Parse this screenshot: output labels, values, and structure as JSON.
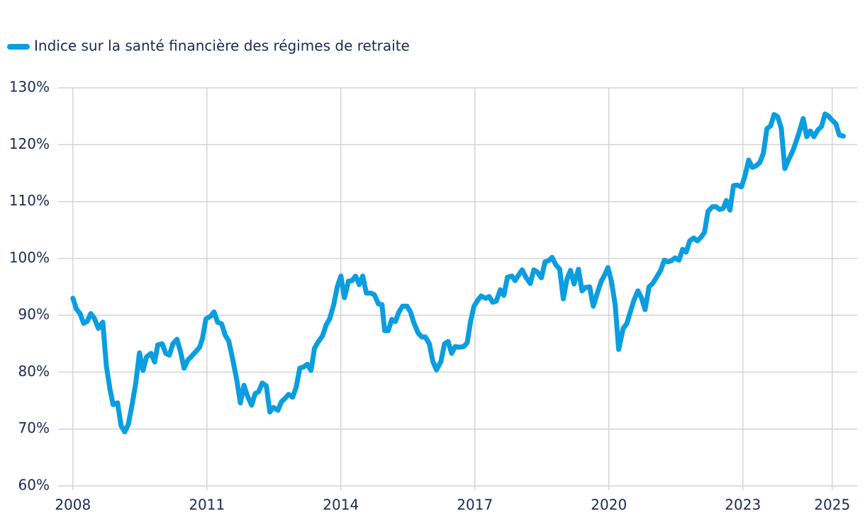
{
  "chart_data": {
    "type": "line",
    "x": [
      2008.0,
      2008.08,
      2008.16,
      2008.24,
      2008.32,
      2008.4,
      2008.48,
      2008.57,
      2008.67,
      2008.75,
      2008.83,
      2008.9,
      2009.0,
      2009.08,
      2009.16,
      2009.24,
      2009.33,
      2009.41,
      2009.49,
      2009.57,
      2009.65,
      2009.75,
      2009.83,
      2009.9,
      2010.0,
      2010.08,
      2010.16,
      2010.24,
      2010.33,
      2010.41,
      2010.49,
      2010.57,
      2010.67,
      2010.75,
      2010.84,
      2010.9,
      2010.98,
      2011.08,
      2011.16,
      2011.24,
      2011.33,
      2011.41,
      2011.49,
      2011.57,
      2011.67,
      2011.75,
      2011.83,
      2011.9,
      2012.0,
      2012.08,
      2012.16,
      2012.24,
      2012.33,
      2012.41,
      2012.49,
      2012.59,
      2012.67,
      2012.75,
      2012.83,
      2012.92,
      2013.0,
      2013.08,
      2013.16,
      2013.25,
      2013.33,
      2013.41,
      2013.49,
      2013.59,
      2013.67,
      2013.75,
      2013.84,
      2013.92,
      2014.0,
      2014.08,
      2014.17,
      2014.25,
      2014.33,
      2014.41,
      2014.49,
      2014.57,
      2014.67,
      2014.75,
      2014.84,
      2014.92,
      2014.98,
      2015.06,
      2015.14,
      2015.22,
      2015.3,
      2015.38,
      2015.48,
      2015.56,
      2015.63,
      2015.73,
      2015.81,
      2015.89,
      2015.98,
      2016.06,
      2016.14,
      2016.24,
      2016.32,
      2016.4,
      2016.48,
      2016.56,
      2016.65,
      2016.75,
      2016.83,
      2016.9,
      2016.98,
      2017.06,
      2017.14,
      2017.24,
      2017.32,
      2017.4,
      2017.48,
      2017.57,
      2017.65,
      2017.73,
      2017.83,
      2017.9,
      2017.98,
      2018.06,
      2018.14,
      2018.24,
      2018.32,
      2018.4,
      2018.49,
      2018.57,
      2018.65,
      2018.73,
      2018.81,
      2018.9,
      2018.98,
      2019.06,
      2019.14,
      2019.22,
      2019.32,
      2019.4,
      2019.48,
      2019.57,
      2019.65,
      2019.75,
      2019.83,
      2019.9,
      2019.98,
      2020.06,
      2020.14,
      2020.22,
      2020.32,
      2020.4,
      2020.48,
      2020.56,
      2020.65,
      2020.73,
      2020.81,
      2020.9,
      2020.98,
      2021.06,
      2021.16,
      2021.24,
      2021.32,
      2021.4,
      2021.48,
      2021.57,
      2021.65,
      2021.73,
      2021.81,
      2021.9,
      2021.98,
      2022.06,
      2022.14,
      2022.22,
      2022.32,
      2022.4,
      2022.48,
      2022.56,
      2022.63,
      2022.71,
      2022.79,
      2022.87,
      2022.97,
      2023.05,
      2023.13,
      2023.21,
      2023.3,
      2023.38,
      2023.46,
      2023.54,
      2023.62,
      2023.7,
      2023.78,
      2023.86,
      2023.94,
      2024.02,
      2024.11,
      2024.19,
      2024.27,
      2024.35,
      2024.43,
      2024.51,
      2024.59,
      2024.68,
      2024.76,
      2024.84,
      2024.92,
      2025.0,
      2025.08,
      2025.16,
      2025.25
    ],
    "series": [
      {
        "name": "Indice sur la santé financière des régimes de retraite",
        "color": "#0a9ee0",
        "values": [
          93.0,
          91.1,
          90.3,
          88.6,
          88.9,
          90.3,
          89.5,
          87.7,
          88.8,
          81.1,
          77.0,
          74.3,
          74.6,
          70.6,
          69.5,
          70.8,
          74.5,
          78.2,
          83.4,
          80.3,
          82.7,
          83.3,
          81.8,
          84.8,
          85.0,
          83.3,
          83.0,
          85.0,
          85.8,
          83.6,
          80.7,
          82.1,
          82.9,
          83.6,
          84.4,
          85.9,
          89.4,
          89.8,
          90.6,
          88.8,
          88.5,
          86.5,
          85.5,
          82.6,
          78.6,
          74.6,
          77.7,
          76.0,
          74.2,
          76.2,
          76.6,
          78.1,
          77.6,
          73.0,
          73.8,
          73.3,
          74.8,
          75.4,
          76.1,
          75.6,
          77.4,
          80.7,
          80.9,
          81.4,
          80.3,
          84.2,
          85.3,
          86.4,
          88.3,
          89.4,
          91.9,
          95.0,
          96.9,
          93.1,
          96.0,
          96.1,
          96.9,
          95.4,
          96.9,
          93.9,
          93.9,
          93.6,
          92.0,
          91.9,
          87.3,
          87.3,
          89.3,
          88.9,
          90.6,
          91.6,
          91.6,
          90.6,
          88.8,
          86.9,
          86.2,
          86.2,
          85.0,
          81.9,
          80.4,
          81.9,
          85.0,
          85.4,
          83.3,
          84.5,
          84.4,
          84.5,
          85.2,
          88.8,
          91.6,
          92.6,
          93.4,
          93.0,
          93.3,
          92.3,
          92.5,
          94.5,
          93.5,
          96.7,
          96.9,
          96.1,
          97.1,
          98.0,
          96.7,
          95.6,
          98.0,
          97.6,
          96.6,
          99.4,
          99.6,
          100.2,
          98.9,
          98.1,
          92.9,
          96.3,
          97.9,
          95.5,
          98.1,
          94.3,
          94.9,
          95.0,
          91.6,
          94.1,
          96.0,
          97.0,
          98.4,
          95.9,
          91.9,
          84.0,
          87.7,
          88.5,
          90.6,
          92.6,
          94.3,
          93.1,
          91.0,
          95.0,
          95.6,
          96.6,
          97.9,
          99.7,
          99.4,
          99.6,
          100.1,
          99.7,
          101.6,
          101.1,
          103.1,
          103.6,
          103.1,
          103.7,
          104.6,
          108.3,
          109.1,
          109.1,
          108.6,
          108.8,
          110.2,
          108.5,
          112.8,
          112.9,
          112.6,
          114.6,
          117.3,
          116.0,
          116.3,
          116.9,
          118.5,
          122.8,
          123.3,
          125.3,
          124.9,
          122.9,
          115.8,
          117.3,
          118.8,
          120.5,
          122.4,
          124.6,
          121.4,
          122.4,
          121.4,
          122.6,
          123.2,
          125.4,
          125.0,
          124.3,
          123.7,
          121.7,
          121.5
        ]
      }
    ],
    "xlim": [
      2007.67,
      2025.56
    ],
    "xticks": [
      2008,
      2011,
      2014,
      2017,
      2020,
      2023,
      2025
    ],
    "ylim": [
      60,
      130
    ],
    "yticks": [
      {
        "value": 60,
        "label": "60%"
      },
      {
        "value": 70,
        "label": "70%"
      },
      {
        "value": 80,
        "label": "80%"
      },
      {
        "value": 90,
        "label": "90%"
      },
      {
        "value": 100,
        "label": "100%"
      },
      {
        "value": 110,
        "label": "110%"
      },
      {
        "value": 120,
        "label": "120%"
      },
      {
        "value": 130,
        "label": "130%"
      }
    ],
    "grid": true,
    "legend": "top-left"
  }
}
